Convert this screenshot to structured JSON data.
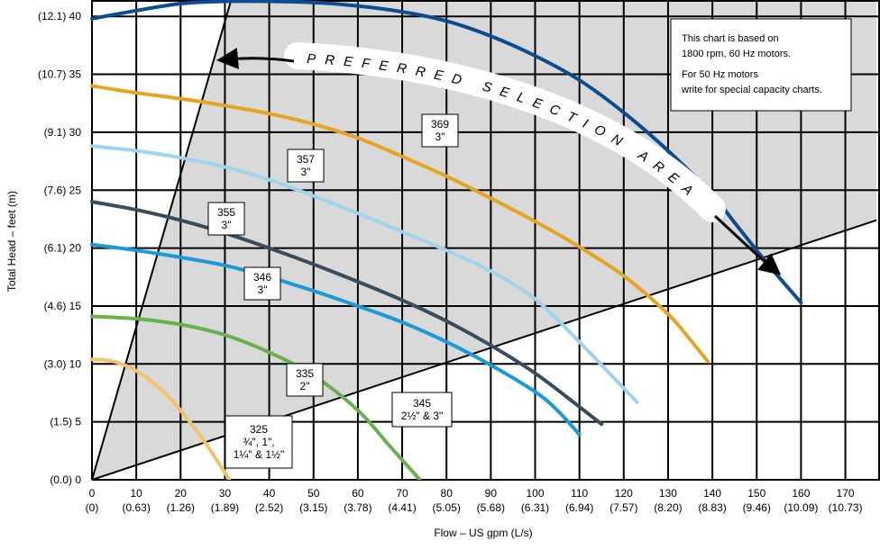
{
  "chart_data": {
    "type": "line",
    "xlabel": "Flow – US gpm (L/s)",
    "ylabel": "Total Head – feet (m)",
    "xlim": [
      0,
      177
    ],
    "ylim": [
      0,
      42.2
    ],
    "x_ticks": [
      {
        "value": 0,
        "label": "0",
        "sub": "(0)"
      },
      {
        "value": 10,
        "label": "10",
        "sub": "(0.63)"
      },
      {
        "value": 20,
        "label": "20",
        "sub": "(1.26)"
      },
      {
        "value": 30,
        "label": "30",
        "sub": "(1.89)"
      },
      {
        "value": 40,
        "label": "40",
        "sub": "(2.52)"
      },
      {
        "value": 50,
        "label": "50",
        "sub": "(3.15)"
      },
      {
        "value": 60,
        "label": "60",
        "sub": "(3.78)"
      },
      {
        "value": 70,
        "label": "70",
        "sub": "(4.41)"
      },
      {
        "value": 80,
        "label": "80",
        "sub": "(5.05)"
      },
      {
        "value": 90,
        "label": "90",
        "sub": "(5.68)"
      },
      {
        "value": 100,
        "label": "100",
        "sub": "(6.31)"
      },
      {
        "value": 110,
        "label": "110",
        "sub": "(6.94)"
      },
      {
        "value": 120,
        "label": "120",
        "sub": "(7.57)"
      },
      {
        "value": 130,
        "label": "130",
        "sub": "(8.20)"
      },
      {
        "value": 140,
        "label": "140",
        "sub": "(8.83)"
      },
      {
        "value": 150,
        "label": "150",
        "sub": "(9.46)"
      },
      {
        "value": 160,
        "label": "160",
        "sub": "(10.09)"
      },
      {
        "value": 170,
        "label": "170",
        "sub": "(10.73)"
      }
    ],
    "y_ticks": [
      {
        "value": 0,
        "label": "(0.0) 0"
      },
      {
        "value": 5,
        "label": "(1.5) 5"
      },
      {
        "value": 10,
        "label": "(3.0) 10"
      },
      {
        "value": 15,
        "label": "(4.6) 15"
      },
      {
        "value": 20,
        "label": "(6.1) 20"
      },
      {
        "value": 25,
        "label": "(7.6) 25"
      },
      {
        "value": 30,
        "label": "(9.1) 30"
      },
      {
        "value": 35,
        "label": "(10.7) 35"
      },
      {
        "value": 40,
        "label": "(12.1) 40"
      }
    ],
    "grid": true,
    "preferred_area": {
      "label": "PREFERRED SELECTION AREA",
      "color": "#d9d9d9",
      "upper_boundary": [
        [
          0,
          0
        ],
        [
          32,
          42.2
        ]
      ],
      "lower_boundary": [
        [
          0,
          0
        ],
        [
          177,
          22.4
        ]
      ]
    },
    "note": {
      "lines": [
        "This chart is based on",
        "1800 rpm, 60 Hz motors.",
        "For 50 Hz motors",
        "write for special capacity charts."
      ]
    },
    "series": [
      {
        "name": "325 ¾\", 1\", 1¼\" & 1½\"",
        "color": "#f2c46a",
        "label_lines": [
          "325",
          "¾\", 1\",",
          "1¼\" & 1½\""
        ],
        "points": [
          [
            0,
            10.4
          ],
          [
            5,
            10.2
          ],
          [
            10,
            9.4
          ],
          [
            15,
            8.0
          ],
          [
            20,
            6.0
          ],
          [
            25,
            3.5
          ],
          [
            28,
            1.8
          ],
          [
            31,
            0
          ]
        ]
      },
      {
        "name": "335 2\"",
        "color": "#6ab04c",
        "label_lines": [
          "335",
          "2\""
        ],
        "points": [
          [
            0,
            14.1
          ],
          [
            10,
            13.9
          ],
          [
            20,
            13.4
          ],
          [
            30,
            12.5
          ],
          [
            40,
            11.0
          ],
          [
            50,
            9.0
          ],
          [
            60,
            6.0
          ],
          [
            67,
            3.0
          ],
          [
            74,
            0
          ]
        ]
      },
      {
        "name": "345 2½\" & 3\"",
        "color": "#1a9ad6",
        "label_lines": [
          "345",
          "2½\" & 3\""
        ],
        "points": [
          [
            0,
            20.3
          ],
          [
            10,
            19.8
          ],
          [
            20,
            19.2
          ],
          [
            30,
            18.5
          ],
          [
            40,
            17.5
          ],
          [
            50,
            16.3
          ],
          [
            60,
            15.0
          ],
          [
            70,
            13.6
          ],
          [
            80,
            11.9
          ],
          [
            90,
            9.9
          ],
          [
            100,
            7.6
          ],
          [
            105,
            6.0
          ],
          [
            110,
            3.9
          ]
        ]
      },
      {
        "name": "346 3\"",
        "color": "#394b5c",
        "label_lines": [
          "346",
          "3\""
        ],
        "points": [
          [
            0,
            24.0
          ],
          [
            10,
            23.3
          ],
          [
            20,
            22.4
          ],
          [
            30,
            21.3
          ],
          [
            40,
            20.0
          ],
          [
            50,
            18.6
          ],
          [
            60,
            17.1
          ],
          [
            70,
            15.5
          ],
          [
            80,
            13.7
          ],
          [
            90,
            11.6
          ],
          [
            100,
            9.2
          ],
          [
            110,
            6.3
          ],
          [
            115,
            4.8
          ]
        ]
      },
      {
        "name": "355 3\"",
        "color": "#9fd4ea",
        "label_lines": [
          "355",
          "3\""
        ],
        "points": [
          [
            0,
            28.8
          ],
          [
            10,
            28.4
          ],
          [
            20,
            27.8
          ],
          [
            30,
            27.0
          ],
          [
            40,
            25.9
          ],
          [
            50,
            24.5
          ],
          [
            60,
            23.0
          ],
          [
            70,
            21.4
          ],
          [
            80,
            19.8
          ],
          [
            90,
            18.0
          ],
          [
            100,
            15.6
          ],
          [
            110,
            11.9
          ],
          [
            117,
            9.1
          ],
          [
            123,
            6.7
          ]
        ]
      },
      {
        "name": "357 3\"",
        "color": "#e5a521",
        "label_lines": [
          "357",
          "3\""
        ],
        "points": [
          [
            0,
            34.0
          ],
          [
            10,
            33.4
          ],
          [
            20,
            32.9
          ],
          [
            30,
            32.3
          ],
          [
            40,
            31.6
          ],
          [
            50,
            30.7
          ],
          [
            60,
            29.5
          ],
          [
            70,
            27.9
          ],
          [
            80,
            26.2
          ],
          [
            90,
            24.3
          ],
          [
            100,
            22.3
          ],
          [
            110,
            20.1
          ],
          [
            120,
            17.6
          ],
          [
            130,
            14.3
          ],
          [
            135,
            12.1
          ],
          [
            139,
            10.2
          ]
        ]
      },
      {
        "name": "369 3\"",
        "color": "#0e4c92",
        "label_lines": [
          "369",
          "3\""
        ],
        "points": [
          [
            0,
            39.8
          ],
          [
            10,
            40.5
          ],
          [
            20,
            41.1
          ],
          [
            30,
            41.3
          ],
          [
            40,
            41.3
          ],
          [
            50,
            41.2
          ],
          [
            60,
            40.9
          ],
          [
            70,
            40.4
          ],
          [
            80,
            39.6
          ],
          [
            90,
            38.3
          ],
          [
            100,
            36.6
          ],
          [
            110,
            34.5
          ],
          [
            120,
            31.7
          ],
          [
            130,
            28.4
          ],
          [
            140,
            24.6
          ],
          [
            145,
            22.2
          ],
          [
            150,
            19.8
          ],
          [
            155,
            17.5
          ],
          [
            160,
            15.3
          ]
        ]
      }
    ]
  }
}
